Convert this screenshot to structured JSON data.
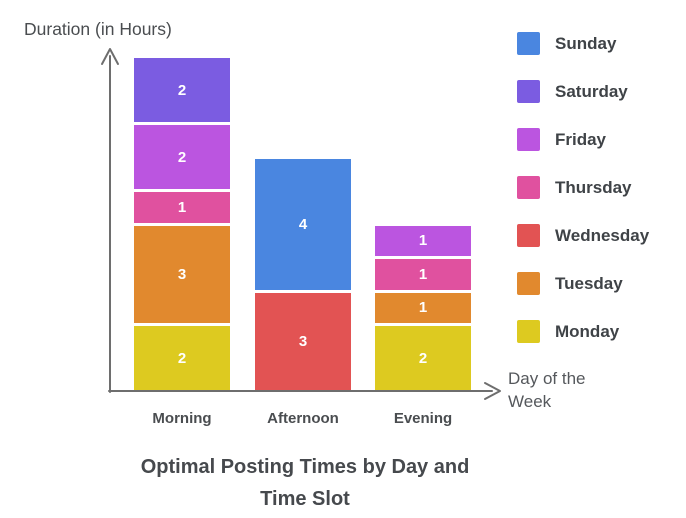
{
  "style": {
    "background": "#ffffff",
    "axis_color": "#6e6e6e",
    "title_color": "#46494d",
    "axis_label_color": "#4a4d50",
    "x_axis_title_color": "#55585c",
    "value_label_color": "#ffffff"
  },
  "chart_data": {
    "type": "bar",
    "stacked": true,
    "title": "Optimal Posting Times by Day and Time Slot",
    "title_lines": [
      "Optimal Posting Times by Day and",
      "Time Slot"
    ],
    "ylabel": "Duration (in Hours)",
    "xlabel": "Day of the Week",
    "xlabel_lines": [
      "Day of the",
      "Week"
    ],
    "categories": [
      "Morning",
      "Afternoon",
      "Evening"
    ],
    "series": [
      {
        "name": "Sunday",
        "color": "#4a86e0",
        "values": [
          0,
          4,
          0
        ]
      },
      {
        "name": "Saturday",
        "color": "#7b5ce1",
        "values": [
          2,
          0,
          0
        ]
      },
      {
        "name": "Friday",
        "color": "#bb55e0",
        "values": [
          2,
          0,
          1
        ]
      },
      {
        "name": "Thursday",
        "color": "#e0519f",
        "values": [
          1,
          0,
          1
        ]
      },
      {
        "name": "Wednesday",
        "color": "#e25353",
        "values": [
          0,
          3,
          0
        ]
      },
      {
        "name": "Tuesday",
        "color": "#e1892e",
        "values": [
          3,
          0,
          1
        ]
      },
      {
        "name": "Monday",
        "color": "#ddca20",
        "values": [
          2,
          0,
          2
        ]
      }
    ],
    "stack_order_bottom_to_top": [
      "Monday",
      "Tuesday",
      "Wednesday",
      "Thursday",
      "Friday",
      "Saturday",
      "Sunday"
    ],
    "bar_totals": [
      10,
      7,
      5
    ],
    "value_labels": true,
    "legend_position": "right",
    "grid": false,
    "ylim": [
      0,
      10
    ]
  }
}
